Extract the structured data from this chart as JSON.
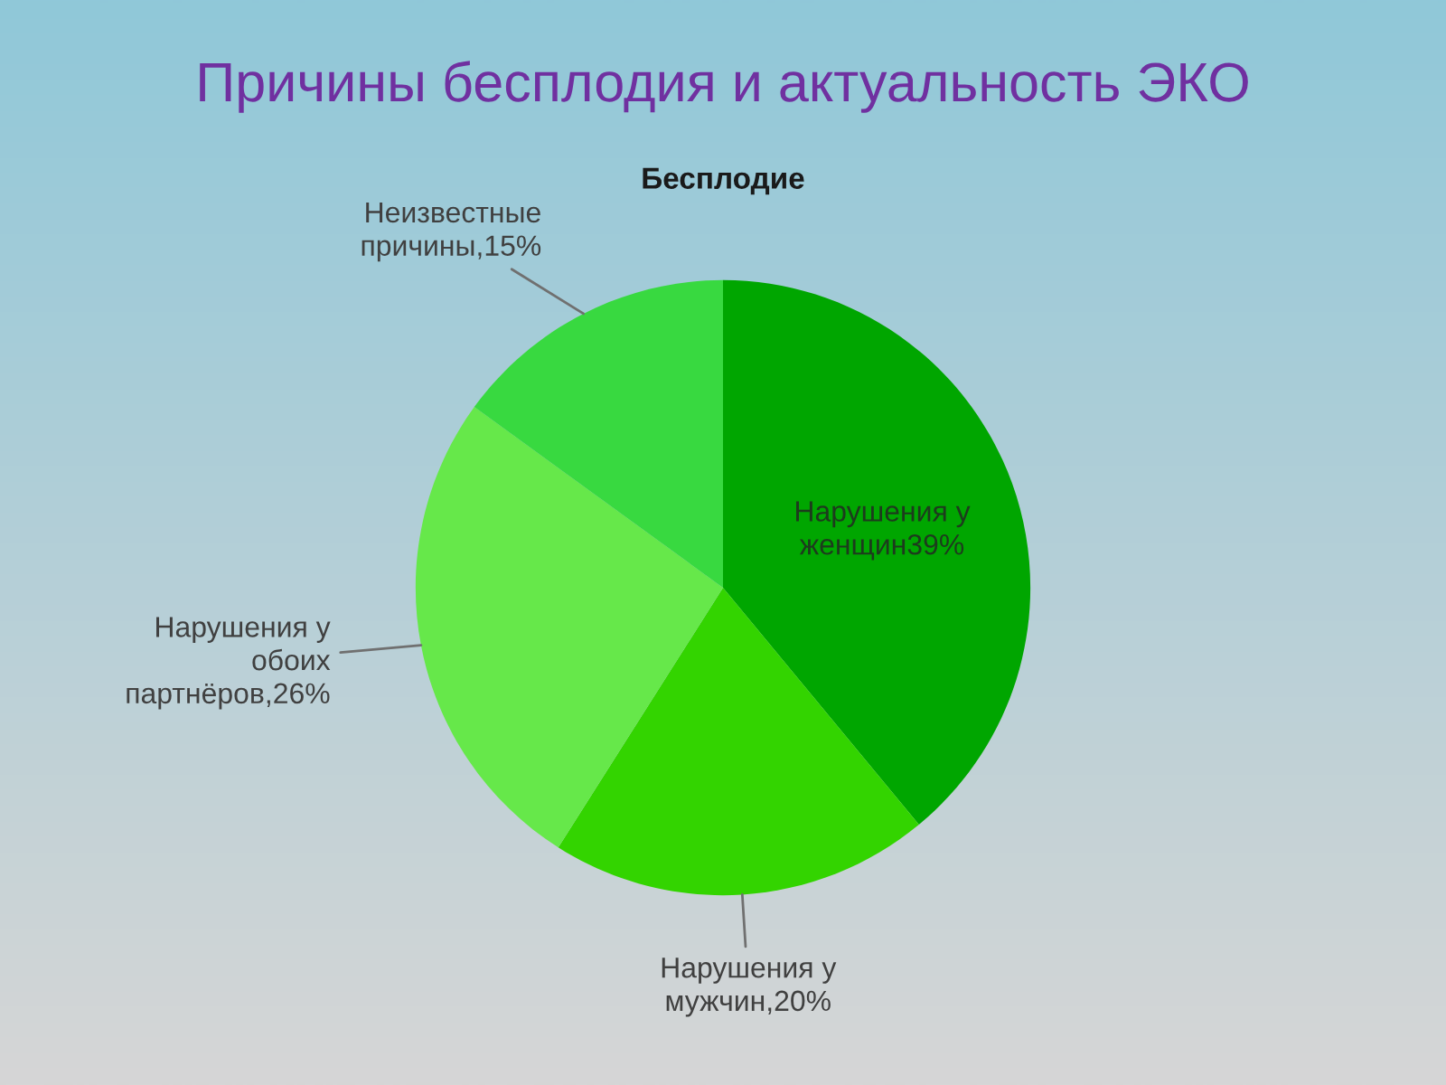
{
  "chart_data": {
    "type": "pie",
    "title": "Причины бесплодия и актуальность ЭКО",
    "subtitle": "Бесплодие",
    "categories": [
      "Нарушения у\nженщин",
      "Нарушения у\nмужчин",
      "Нарушения у\nобоих\nпартнёров",
      "Неизвестные\nпричины"
    ],
    "values": [
      39,
      20,
      26,
      15
    ],
    "colors": [
      "#00a600",
      "#33d400",
      "#66e84a",
      "#38d940"
    ],
    "value_labels": [
      "39%",
      ",20%",
      ",26%",
      ",15%"
    ]
  }
}
